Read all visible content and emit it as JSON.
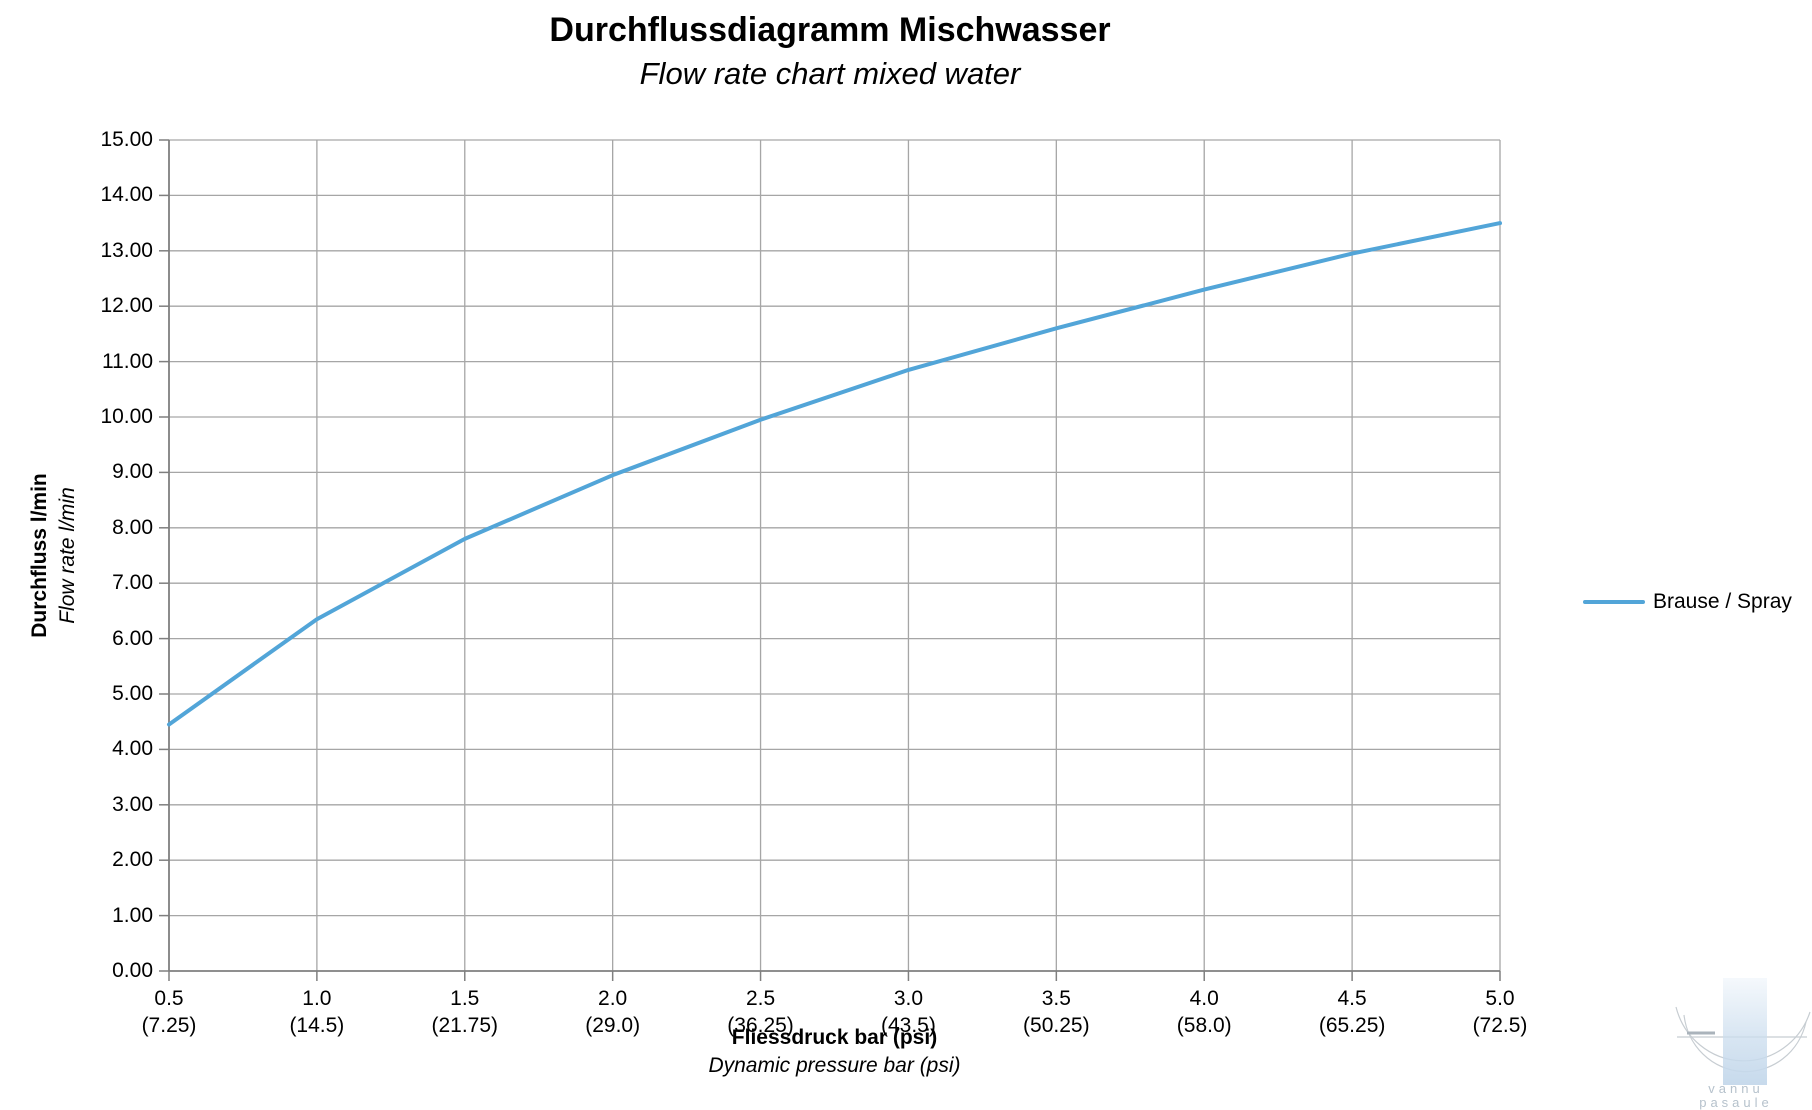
{
  "chart": {
    "title_de": "Durchflussdiagramm Mischwasser",
    "title_en": "Flow rate chart mixed water",
    "y_axis": {
      "label_de": "Durchfluss l/min",
      "label_en": "Flow rate l/min"
    },
    "x_axis": {
      "label_de": "Fliessdruck bar (psi)",
      "label_en": "Dynamic pressure bar (psi)"
    },
    "legend": {
      "label": "Brause / Spray"
    }
  },
  "chart_data": {
    "type": "line",
    "title": "Durchflussdiagramm Mischwasser",
    "subtitle": "Flow rate chart mixed water",
    "xlabel": "Fliessdruck bar (psi) / Dynamic pressure bar (psi)",
    "ylabel": "Durchfluss l/min / Flow rate l/min",
    "x_tick_labels_bar": [
      "0.5",
      "1.0",
      "1.5",
      "2.0",
      "2.5",
      "3.0",
      "3.5",
      "4.0",
      "4.5",
      "5.0"
    ],
    "x_tick_labels_psi": [
      "(7.25)",
      "(14.5)",
      "(21.75)",
      "(29.0)",
      "(36.25)",
      "(43.5)",
      "(50.25)",
      "(58.0)",
      "(65.25)",
      "(72.5)"
    ],
    "ylim": [
      0,
      15
    ],
    "y_tick_step": 1,
    "y_tick_decimals": 2,
    "grid": true,
    "legend_position": "right",
    "series": [
      {
        "name": "Brause / Spray",
        "color": "#52A5D8",
        "x": [
          0.5,
          1.0,
          1.5,
          2.0,
          2.5,
          3.0,
          3.5,
          4.0,
          4.5,
          5.0
        ],
        "values": [
          4.45,
          6.35,
          7.8,
          8.95,
          9.95,
          10.85,
          11.6,
          12.3,
          12.95,
          13.5
        ]
      }
    ]
  },
  "watermark": {
    "line1": "vannu",
    "line2": "pasaule"
  },
  "colors": {
    "line": "#52A5D8",
    "gridline": "#A6A6A6",
    "axis": "#7F7F7F",
    "watermark_arc": "#c7cdd2",
    "watermark_text": "#b6c2cc"
  }
}
